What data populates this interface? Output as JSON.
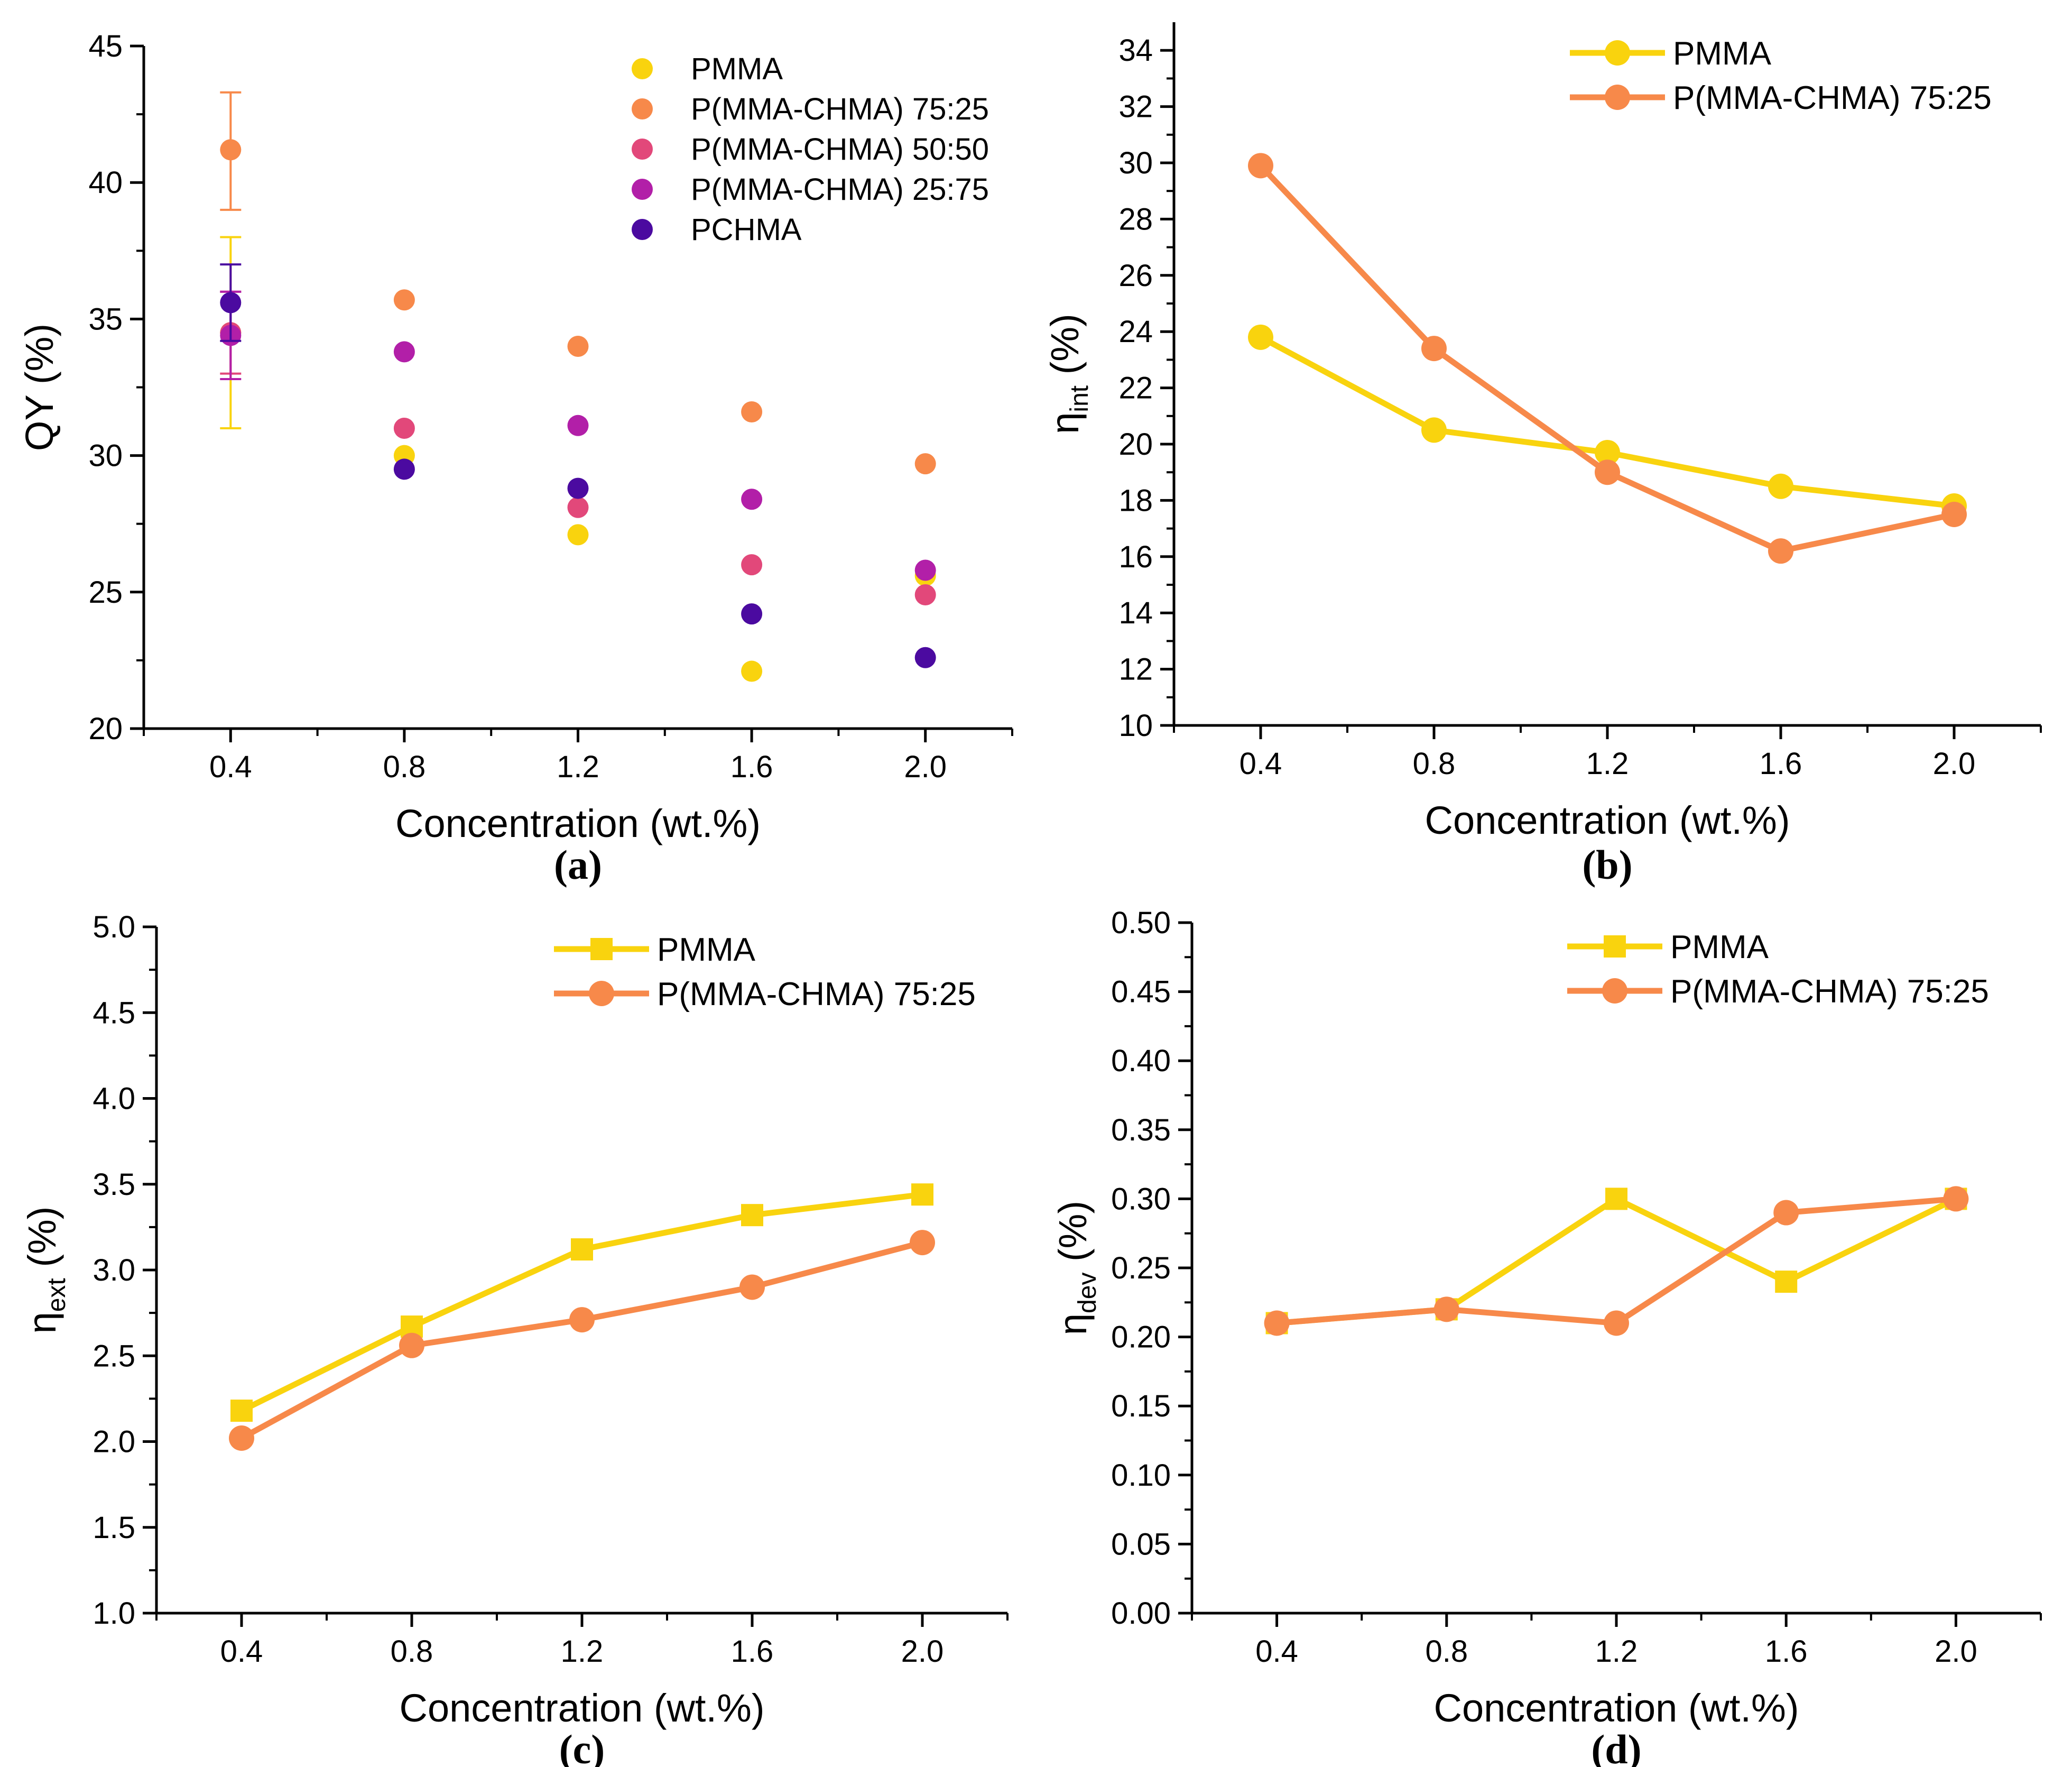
{
  "chart_data": [
    {
      "id": "a",
      "type": "scatter",
      "panel_label": "(a)",
      "xlabel": "Concentration (wt.%)",
      "ylabel": "QY (%)",
      "x": [
        0.4,
        0.8,
        1.2,
        1.6,
        2.0
      ],
      "x_tick_labels": [
        "0.4",
        "0.8",
        "1.2",
        "1.6",
        "2.0"
      ],
      "xlim": [
        0.2,
        2.2
      ],
      "ylim": [
        20,
        45
      ],
      "y_ticks": [
        20,
        25,
        30,
        35,
        40,
        45
      ],
      "y_tick_labels": [
        "20",
        "25",
        "30",
        "35",
        "40",
        "45"
      ],
      "legend_position": "top-right",
      "series": [
        {
          "name": "PMMA",
          "color": "#F9D30E",
          "values": [
            34.5,
            30.0,
            27.1,
            22.1,
            25.6
          ],
          "error_at_first": [
            31.0,
            38.0
          ]
        },
        {
          "name": "P(MMA-CHMA) 75:25",
          "color": "#F7894A",
          "values": [
            41.2,
            35.7,
            34.0,
            31.6,
            29.7
          ],
          "error_at_first": [
            39.0,
            43.3
          ]
        },
        {
          "name": "P(MMA-CHMA) 50:50",
          "color": "#E2487A",
          "values": [
            34.5,
            31.0,
            28.1,
            26.0,
            24.9
          ],
          "error_at_first": [
            33.0,
            36.0
          ]
        },
        {
          "name": "P(MMA-CHMA) 25:75",
          "color": "#B21FA8",
          "values": [
            34.4,
            33.8,
            31.1,
            28.4,
            25.8
          ],
          "error_at_first": [
            32.8,
            36.0
          ]
        },
        {
          "name": "PCHMA",
          "color": "#4B0AA0",
          "values": [
            35.6,
            29.5,
            28.8,
            24.2,
            22.6
          ],
          "error_at_first": [
            34.2,
            37.0
          ]
        }
      ]
    },
    {
      "id": "b",
      "type": "line",
      "panel_label": "(b)",
      "xlabel": "Concentration (wt.%)",
      "ylabel_main": "η",
      "ylabel_sub": "int",
      "ylabel_tail": " (%)",
      "x": [
        0.4,
        0.8,
        1.2,
        1.6,
        2.0
      ],
      "x_tick_labels": [
        "0.4",
        "0.8",
        "1.2",
        "1.6",
        "2.0"
      ],
      "xlim": [
        0.2,
        2.2
      ],
      "ylim": [
        10,
        35
      ],
      "y_ticks": [
        10,
        12,
        14,
        16,
        18,
        20,
        22,
        24,
        26,
        28,
        30,
        32,
        34
      ],
      "y_tick_labels": [
        "10",
        "12",
        "14",
        "16",
        "18",
        "20",
        "22",
        "24",
        "26",
        "28",
        "30",
        "32",
        "34"
      ],
      "legend_position": "top-right",
      "series": [
        {
          "name": "PMMA",
          "color": "#F9D30E",
          "marker": "circle",
          "values": [
            23.8,
            20.5,
            19.7,
            18.5,
            17.8
          ]
        },
        {
          "name": "P(MMA-CHMA) 75:25",
          "color": "#F7894A",
          "marker": "circle",
          "values": [
            29.9,
            23.4,
            19.0,
            16.2,
            17.5
          ]
        }
      ]
    },
    {
      "id": "c",
      "type": "line",
      "panel_label": "(c)",
      "xlabel": "Concentration (wt.%)",
      "ylabel_main": "η",
      "ylabel_sub": "ext",
      "ylabel_tail": " (%)",
      "x": [
        0.4,
        0.8,
        1.2,
        1.6,
        2.0
      ],
      "x_tick_labels": [
        "0.4",
        "0.8",
        "1.2",
        "1.6",
        "2.0"
      ],
      "xlim": [
        0.2,
        2.2
      ],
      "ylim": [
        1.0,
        5.0
      ],
      "y_ticks": [
        1.0,
        1.5,
        2.0,
        2.5,
        3.0,
        3.5,
        4.0,
        4.5,
        5.0
      ],
      "y_tick_labels": [
        "1.0",
        "1.5",
        "2.0",
        "2.5",
        "3.0",
        "3.5",
        "4.0",
        "4.5",
        "5.0"
      ],
      "legend_position": "top-right",
      "series": [
        {
          "name": "PMMA",
          "color": "#F9D30E",
          "marker": "square",
          "values": [
            2.18,
            2.67,
            3.12,
            3.32,
            3.44
          ]
        },
        {
          "name": "P(MMA-CHMA) 75:25",
          "color": "#F7894A",
          "marker": "circle",
          "values": [
            2.02,
            2.56,
            2.71,
            2.9,
            3.16
          ]
        }
      ]
    },
    {
      "id": "d",
      "type": "line",
      "panel_label": "(d)",
      "xlabel": "Concentration (wt.%)",
      "ylabel_main": "η",
      "ylabel_sub": "dev",
      "ylabel_tail": " (%)",
      "x": [
        0.4,
        0.8,
        1.2,
        1.6,
        2.0
      ],
      "x_tick_labels": [
        "0.4",
        "0.8",
        "1.2",
        "1.6",
        "2.0"
      ],
      "xlim": [
        0.2,
        2.2
      ],
      "ylim": [
        0.0,
        0.5
      ],
      "y_ticks": [
        0.0,
        0.05,
        0.1,
        0.15,
        0.2,
        0.25,
        0.3,
        0.35,
        0.4,
        0.45,
        0.5
      ],
      "y_tick_labels": [
        "0.00",
        "0.05",
        "0.10",
        "0.15",
        "0.20",
        "0.25",
        "0.30",
        "0.35",
        "0.40",
        "0.45",
        "0.50"
      ],
      "legend_position": "top-right",
      "series": [
        {
          "name": "PMMA",
          "color": "#F9D30E",
          "marker": "square",
          "values": [
            0.21,
            0.22,
            0.3,
            0.24,
            0.3
          ]
        },
        {
          "name": "P(MMA-CHMA) 75:25",
          "color": "#F7894A",
          "marker": "circle",
          "values": [
            0.21,
            0.22,
            0.21,
            0.29,
            0.3
          ]
        }
      ]
    }
  ]
}
